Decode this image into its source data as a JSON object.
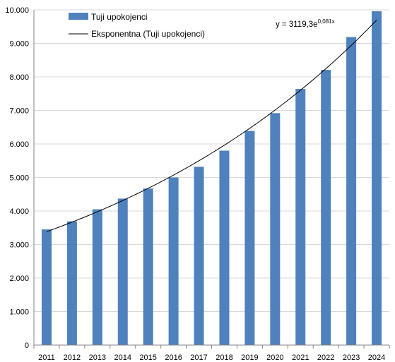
{
  "chart_data": {
    "type": "bar",
    "categories": [
      "2011",
      "2012",
      "2013",
      "2014",
      "2015",
      "2016",
      "2017",
      "2018",
      "2019",
      "2020",
      "2021",
      "2022",
      "2023",
      "2024"
    ],
    "series": [
      {
        "name": "Tuji upokojenci",
        "values": [
          3450,
          3690,
          4050,
          4370,
          4670,
          5000,
          5320,
          5800,
          6390,
          6920,
          7640,
          8210,
          9190,
          9960
        ],
        "color": "#4f81bd"
      }
    ],
    "trendline": {
      "name": "Eksponentna (Tuji upokojenci)",
      "type": "exponential",
      "coefficient": 3119.3,
      "rate": 0.081,
      "color": "#000000",
      "equation": {
        "prefix": "y = 3119,3e",
        "exponent": "0,081x"
      }
    },
    "y_ticks": [
      "0",
      "1.000",
      "2.000",
      "3.000",
      "4.000",
      "5.000",
      "6.000",
      "7.000",
      "8.000",
      "9.000",
      "10.000"
    ],
    "ylim": [
      0,
      10000
    ],
    "grid": true,
    "legend_position": "top-left"
  }
}
